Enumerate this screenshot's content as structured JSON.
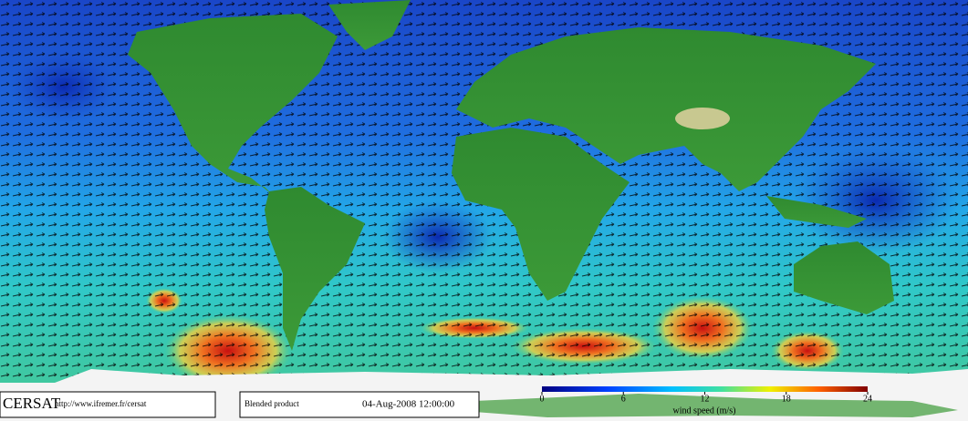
{
  "footer": {
    "logo": "CERSAT",
    "url": "http://www.ifremer.fr/cersat",
    "product": "Blended product",
    "date": "04-Aug-2008 12:00:00"
  },
  "colorbar": {
    "range": [
      0,
      24
    ],
    "ticks": [
      0,
      6,
      12,
      18,
      24
    ],
    "label": "wind speed (m/s)"
  }
}
